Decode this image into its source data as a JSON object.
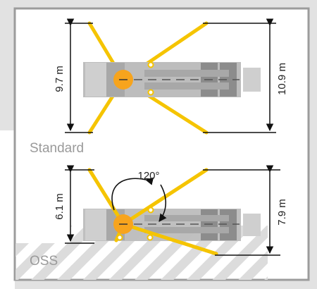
{
  "sections": {
    "standard": {
      "label": "Standard",
      "front_span": "9.7 m",
      "rear_span": "10.9 m"
    },
    "oss": {
      "label": "OSS",
      "front_span": "6.1 m",
      "rear_span": "7.9 m",
      "slew_angle": "120°"
    }
  },
  "colors": {
    "outrigger": "#F5C400",
    "pivot": "#F7A41D",
    "frame": "#9c9c9c",
    "panel": "#e2e2e2",
    "hatch": "#dcdcdc",
    "dimension_line": "#111111"
  }
}
